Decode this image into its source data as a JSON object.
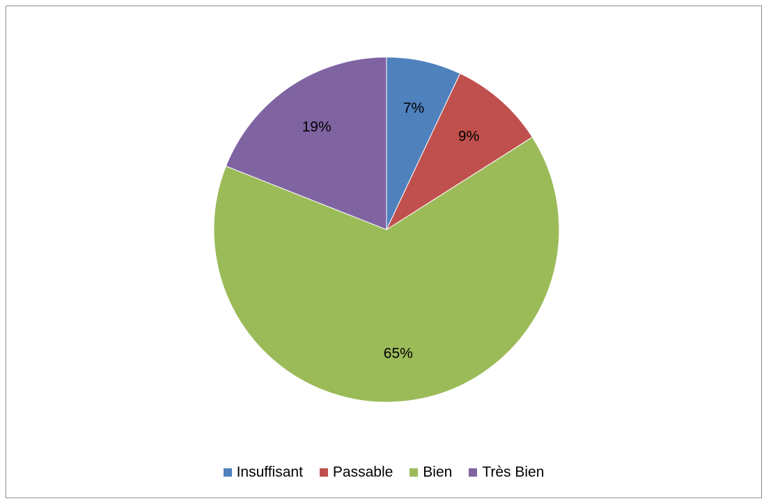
{
  "chart_data": {
    "type": "pie",
    "title": "",
    "categories": [
      "Insuffisant",
      "Passable",
      "Bien",
      "Très Bien"
    ],
    "values": [
      7,
      9,
      65,
      19
    ],
    "labels": [
      "7%",
      "9%",
      "65%",
      "19%"
    ],
    "colors": [
      "#4f81bd",
      "#c0504d",
      "#9bbb59",
      "#8064a2"
    ],
    "start_angle": "12 o'clock",
    "direction": "clockwise",
    "legend": "bottom"
  }
}
